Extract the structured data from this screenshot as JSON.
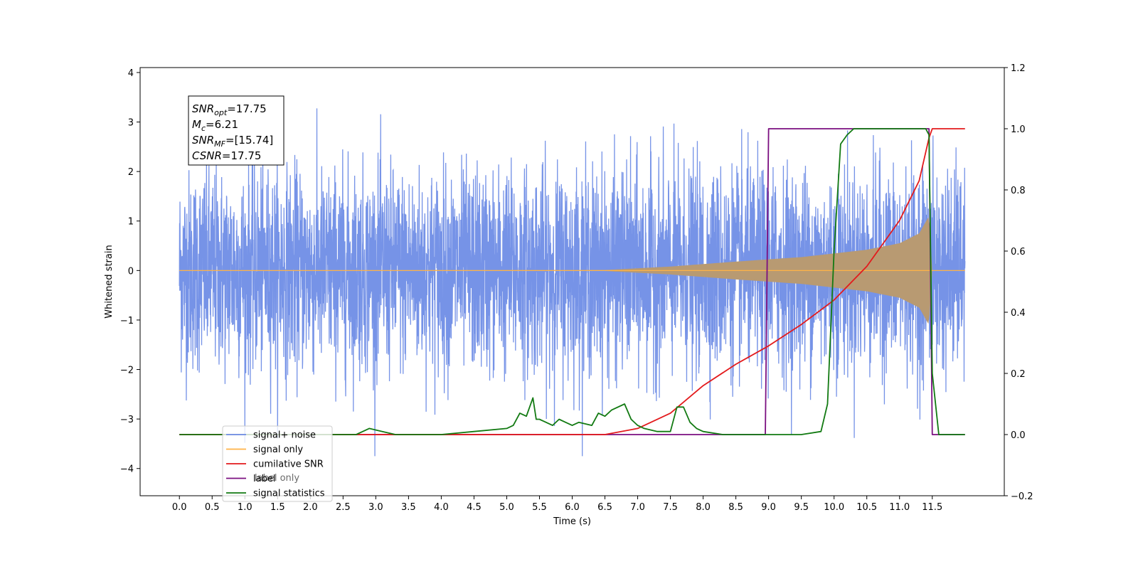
{
  "chart_data": {
    "type": "line",
    "xlabel": "Time (s)",
    "ylabel_left": "Whitened strain",
    "ylabel_right": "",
    "xlim": [
      -0.6,
      12.6
    ],
    "ylim_left": [
      -4.55,
      4.1
    ],
    "ylim_right": [
      -0.2,
      1.2
    ],
    "x_ticks": [
      0.0,
      0.5,
      1.0,
      1.5,
      2.0,
      2.5,
      3.0,
      3.5,
      4.0,
      4.5,
      5.0,
      5.5,
      6.0,
      6.5,
      7.0,
      7.5,
      8.0,
      8.5,
      9.0,
      9.5,
      10.0,
      10.5,
      11.0,
      11.5
    ],
    "x_tick_labels": [
      "0.0",
      "0.5",
      "1.0",
      "1.5",
      "2.0",
      "2.5",
      "3.0",
      "3.5",
      "4.0",
      "4.5",
      "5.0",
      "5.5",
      "6.0",
      "6.5",
      "7.0",
      "7.5",
      "8.0",
      "8.5",
      "9.0",
      "9.5",
      "10.0",
      "10.5",
      "11.0",
      "11.5"
    ],
    "y_left_ticks": [
      4,
      3,
      2,
      1,
      0,
      -1,
      -2,
      -3,
      -4
    ],
    "y_left_tick_labels": [
      "4",
      "3",
      "2",
      "1",
      "0",
      "−1",
      "−2",
      "−3",
      "−4"
    ],
    "y_right_ticks": [
      1.2,
      1.0,
      0.8,
      0.6,
      0.4,
      0.2,
      0.0,
      -0.2
    ],
    "y_right_tick_labels": [
      "1.2",
      "1.0",
      "0.8",
      "0.6",
      "0.4",
      "0.2",
      "0.0",
      "−0.2"
    ],
    "grid": false,
    "legend_position": "lower-left",
    "annotation": {
      "lines": [
        {
          "base": "SNR",
          "sub": "opt",
          "rest": "=17.75"
        },
        {
          "base": "M",
          "sub": "c",
          "rest": "=6.21"
        },
        {
          "base": "SNR",
          "sub": "MF",
          "rest": "=[15.74]"
        },
        {
          "base": "CSNR",
          "sub": "",
          "rest": "=17.75"
        }
      ]
    },
    "series": [
      {
        "name": "signal+ noise",
        "axis": "left",
        "color": "#6f8de6",
        "kind": "noise",
        "noise_band_sigma": 1.0,
        "x_range": [
          0.0,
          12.0
        ]
      },
      {
        "name": "signal only",
        "axis": "left",
        "color": "#ffb347",
        "kind": "chirp",
        "x_range": [
          0.0,
          12.0
        ],
        "amplitude_points": [
          [
            0,
            0
          ],
          [
            6.5,
            0.01
          ],
          [
            7.5,
            0.08
          ],
          [
            8.5,
            0.18
          ],
          [
            9.5,
            0.27
          ],
          [
            10.5,
            0.42
          ],
          [
            11.0,
            0.55
          ],
          [
            11.3,
            0.75
          ],
          [
            11.45,
            1.1
          ],
          [
            11.5,
            0
          ]
        ]
      },
      {
        "name": "cumilative SNR",
        "axis": "right",
        "color": "#e31a1c",
        "x": [
          0,
          6.5,
          7.0,
          7.5,
          8.0,
          8.5,
          9.0,
          9.5,
          10.0,
          10.5,
          11.0,
          11.3,
          11.45,
          11.5,
          12.0
        ],
        "y": [
          0,
          0,
          0.02,
          0.07,
          0.16,
          0.23,
          0.29,
          0.36,
          0.44,
          0.55,
          0.7,
          0.83,
          0.97,
          1.0,
          1.0
        ]
      },
      {
        "name": "label",
        "axis": "right",
        "color": "#7b0f80",
        "x": [
          0,
          8.95,
          9.0,
          11.45,
          11.5,
          12.0
        ],
        "y": [
          0,
          0,
          1,
          1,
          0,
          0
        ]
      },
      {
        "name": "signal statistics",
        "axis": "right",
        "color": "#127a12",
        "x": [
          0,
          2.7,
          2.9,
          3.1,
          3.3,
          3.5,
          4.0,
          4.5,
          5.0,
          5.1,
          5.2,
          5.3,
          5.4,
          5.45,
          5.5,
          5.7,
          5.8,
          5.9,
          6.0,
          6.1,
          6.3,
          6.4,
          6.5,
          6.6,
          6.8,
          6.9,
          7.0,
          7.1,
          7.3,
          7.4,
          7.5,
          7.6,
          7.7,
          7.8,
          7.9,
          8.0,
          8.3,
          8.5,
          9.0,
          9.5,
          9.8,
          9.9,
          10.0,
          10.1,
          10.2,
          10.3,
          10.5,
          11.4,
          11.45,
          11.5,
          11.6,
          12.0
        ],
        "y": [
          0,
          0,
          0.02,
          0.01,
          0.0,
          0.0,
          0.0,
          0.01,
          0.02,
          0.03,
          0.07,
          0.06,
          0.12,
          0.05,
          0.05,
          0.03,
          0.05,
          0.04,
          0.03,
          0.04,
          0.03,
          0.07,
          0.06,
          0.08,
          0.1,
          0.05,
          0.03,
          0.02,
          0.01,
          0.01,
          0.01,
          0.09,
          0.09,
          0.04,
          0.02,
          0.01,
          0.0,
          0.0,
          0.0,
          0.0,
          0.01,
          0.1,
          0.6,
          0.95,
          0.98,
          1.0,
          1.0,
          1.0,
          0.98,
          0.2,
          0.0,
          0.0
        ]
      }
    ],
    "legend_items": [
      {
        "label": "signal+ noise",
        "color": "#6f8de6"
      },
      {
        "label": "signal only",
        "color": "#ffb347"
      },
      {
        "label": "cumilative SNR",
        "color": "#e31a1c"
      },
      {
        "label": "label",
        "color": "#7b0f80"
      },
      {
        "label": "signal statistics",
        "color": "#127a12"
      }
    ],
    "hidden_legend_label": "label only"
  }
}
